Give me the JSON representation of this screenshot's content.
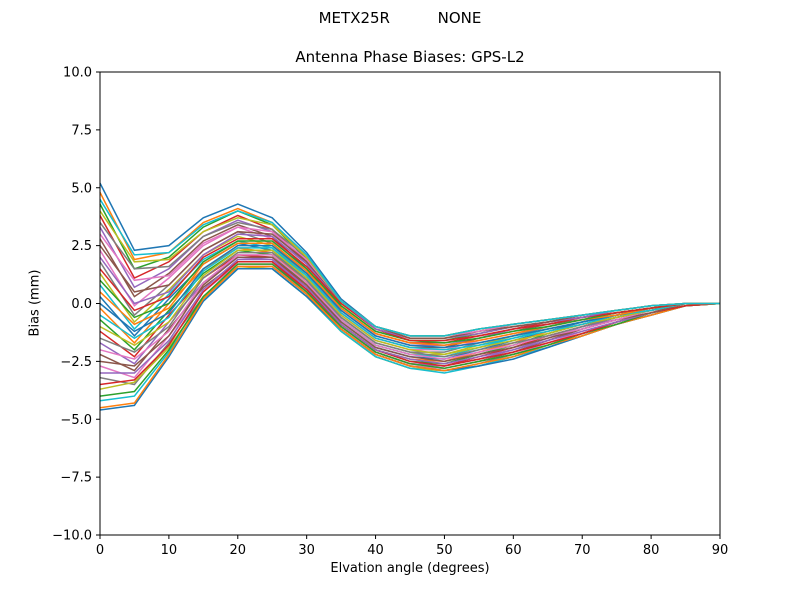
{
  "chart_data": {
    "type": "line",
    "suptitle": "METX25R          NONE",
    "title": "Antenna Phase Biases: GPS-L2",
    "xlabel": "Elvation angle (degrees)",
    "ylabel": "Bias (mm)",
    "xlim": [
      0,
      90
    ],
    "ylim": [
      -10,
      10
    ],
    "xticks": [
      0,
      10,
      20,
      30,
      40,
      50,
      60,
      70,
      80,
      90
    ],
    "yticks": [
      -10.0,
      -7.5,
      -5.0,
      -2.5,
      0.0,
      2.5,
      5.0,
      7.5,
      10.0
    ],
    "ytick_labels": [
      "−10.0",
      "−7.5",
      "−5.0",
      "−2.5",
      "0.0",
      "2.5",
      "5.0",
      "7.5",
      "10.0"
    ],
    "grid": false,
    "legend": "none",
    "palette": [
      "#1f77b4",
      "#ff7f0e",
      "#2ca02c",
      "#d62728",
      "#9467bd",
      "#8c564b",
      "#e377c2",
      "#7f7f7f",
      "#bcbd22",
      "#17becf"
    ],
    "x": [
      0,
      5,
      10,
      15,
      20,
      25,
      30,
      35,
      40,
      45,
      50,
      55,
      60,
      65,
      70,
      75,
      80,
      85,
      90
    ],
    "series": [
      {
        "values": [
          5.2,
          2.3,
          2.5,
          3.7,
          4.3,
          3.7,
          2.2,
          0.2,
          -1.0,
          -1.4,
          -1.4,
          -1.1,
          -0.9,
          -0.7,
          -0.5,
          -0.3,
          -0.1,
          0.0,
          0.0
        ]
      },
      {
        "values": [
          4.8,
          1.9,
          2.2,
          3.5,
          4.1,
          3.5,
          2.0,
          0.0,
          -1.1,
          -1.5,
          -1.5,
          -1.2,
          -0.9,
          -0.7,
          -0.5,
          -0.3,
          -0.1,
          0.0,
          0.0
        ]
      },
      {
        "values": [
          4.3,
          1.5,
          2.0,
          3.3,
          4.0,
          3.4,
          1.9,
          -0.1,
          -1.2,
          -1.6,
          -1.6,
          -1.3,
          -1.0,
          -0.8,
          -0.6,
          -0.4,
          -0.2,
          0.0,
          0.0
        ]
      },
      {
        "values": [
          3.8,
          1.1,
          1.8,
          3.1,
          3.8,
          3.2,
          1.8,
          -0.2,
          -1.3,
          -1.7,
          -1.7,
          -1.4,
          -1.1,
          -0.8,
          -0.6,
          -0.4,
          -0.2,
          0.0,
          0.0
        ]
      },
      {
        "values": [
          3.3,
          0.7,
          1.5,
          2.9,
          3.6,
          3.1,
          1.7,
          -0.3,
          -1.4,
          -1.8,
          -1.8,
          -1.5,
          -1.1,
          -0.9,
          -0.6,
          -0.4,
          -0.2,
          0.0,
          0.0
        ]
      },
      {
        "values": [
          2.8,
          0.3,
          1.3,
          2.7,
          3.4,
          2.9,
          1.5,
          -0.4,
          -1.5,
          -1.9,
          -1.9,
          -1.5,
          -1.2,
          -0.9,
          -0.7,
          -0.4,
          -0.2,
          0.0,
          0.0
        ]
      },
      {
        "values": [
          2.3,
          -0.1,
          1.1,
          2.5,
          3.3,
          2.8,
          1.4,
          -0.5,
          -1.6,
          -2.0,
          -2.0,
          -1.6,
          -1.3,
          -1.0,
          -0.7,
          -0.5,
          -0.2,
          0.0,
          0.0
        ]
      },
      {
        "values": [
          1.8,
          -0.5,
          0.8,
          2.3,
          3.1,
          2.6,
          1.3,
          -0.6,
          -1.7,
          -2.1,
          -2.1,
          -1.7,
          -1.4,
          -1.0,
          -0.7,
          -0.5,
          -0.2,
          0.0,
          0.0
        ]
      },
      {
        "values": [
          1.3,
          -0.8,
          0.6,
          2.1,
          2.9,
          2.5,
          1.2,
          -0.7,
          -1.8,
          -2.2,
          -2.2,
          -1.8,
          -1.4,
          -1.1,
          -0.8,
          -0.5,
          -0.2,
          0.0,
          0.0
        ]
      },
      {
        "values": [
          0.8,
          -1.1,
          0.4,
          1.9,
          2.7,
          2.4,
          1.1,
          -0.7,
          -1.8,
          -2.2,
          -2.3,
          -1.9,
          -1.5,
          -1.1,
          -0.8,
          -0.5,
          -0.3,
          0.0,
          0.0
        ]
      },
      {
        "values": [
          0.3,
          -1.4,
          0.2,
          1.7,
          2.6,
          2.3,
          1.0,
          -0.8,
          -1.9,
          -2.3,
          -2.4,
          -2.0,
          -1.6,
          -1.2,
          -0.8,
          -0.5,
          -0.3,
          0.0,
          0.0
        ]
      },
      {
        "values": [
          -0.2,
          -1.7,
          0.0,
          1.5,
          2.4,
          2.2,
          0.9,
          -0.9,
          -2.0,
          -2.4,
          -2.5,
          -2.1,
          -1.7,
          -1.2,
          -0.9,
          -0.6,
          -0.3,
          0.0,
          0.0
        ]
      },
      {
        "values": [
          -0.7,
          -2.0,
          -0.3,
          1.3,
          2.3,
          2.1,
          0.8,
          -0.9,
          -2.0,
          -2.5,
          -2.6,
          -2.2,
          -1.8,
          -1.3,
          -0.9,
          -0.6,
          -0.3,
          0.0,
          0.0
        ]
      },
      {
        "values": [
          -1.2,
          -2.3,
          -0.5,
          1.1,
          2.1,
          2.0,
          0.7,
          -1.0,
          -2.1,
          -2.6,
          -2.7,
          -2.3,
          -1.9,
          -1.4,
          -1.0,
          -0.6,
          -0.3,
          0.0,
          0.0
        ]
      },
      {
        "values": [
          -1.7,
          -2.6,
          -0.8,
          0.9,
          2.0,
          1.9,
          0.6,
          -1.0,
          -2.1,
          -2.6,
          -2.7,
          -2.4,
          -2.0,
          -1.5,
          -1.0,
          -0.7,
          -0.4,
          0.0,
          0.0
        ]
      },
      {
        "values": [
          -2.2,
          -2.9,
          -1.1,
          0.7,
          1.8,
          1.8,
          0.5,
          -1.1,
          -2.2,
          -2.7,
          -2.8,
          -2.5,
          -2.1,
          -1.6,
          -1.1,
          -0.7,
          -0.4,
          0.0,
          0.0
        ]
      },
      {
        "values": [
          -2.7,
          -3.2,
          -1.4,
          0.5,
          1.7,
          1.7,
          0.4,
          -1.1,
          -2.2,
          -2.7,
          -2.8,
          -2.5,
          -2.2,
          -1.7,
          -1.2,
          -0.8,
          -0.4,
          0.0,
          0.0
        ]
      },
      {
        "values": [
          -3.2,
          -3.5,
          -1.7,
          0.3,
          1.6,
          1.6,
          0.4,
          -1.2,
          -2.3,
          -2.8,
          -2.9,
          -2.6,
          -2.2,
          -1.8,
          -1.3,
          -0.8,
          -0.4,
          -0.1,
          0.0
        ]
      },
      {
        "values": [
          -3.7,
          -3.4,
          -1.9,
          0.2,
          1.6,
          1.5,
          0.3,
          -1.2,
          -2.3,
          -2.8,
          -2.9,
          -2.7,
          -2.3,
          -1.8,
          -1.3,
          -0.8,
          -0.4,
          -0.1,
          0.0
        ]
      },
      {
        "values": [
          -4.2,
          -4.0,
          -2.1,
          0.1,
          1.5,
          1.5,
          0.3,
          -1.2,
          -2.3,
          -2.8,
          -3.0,
          -2.7,
          -2.3,
          -1.9,
          -1.4,
          -0.9,
          -0.5,
          -0.1,
          0.0
        ]
      },
      {
        "values": [
          -4.6,
          -4.4,
          -2.3,
          0.1,
          1.5,
          1.5,
          0.3,
          -1.1,
          -2.2,
          -2.7,
          -2.9,
          -2.7,
          -2.4,
          -1.9,
          -1.4,
          -0.9,
          -0.5,
          -0.1,
          0.0
        ]
      },
      {
        "values": [
          -4.5,
          -4.3,
          -2.2,
          0.2,
          1.6,
          1.6,
          0.4,
          -1.1,
          -2.2,
          -2.7,
          -2.9,
          -2.6,
          -2.3,
          -1.8,
          -1.4,
          -0.9,
          -0.5,
          -0.1,
          0.0
        ]
      },
      {
        "values": [
          -4.0,
          -3.8,
          -2.0,
          0.3,
          1.7,
          1.7,
          0.5,
          -1.0,
          -2.1,
          -2.6,
          -2.8,
          -2.5,
          -2.2,
          -1.8,
          -1.3,
          -0.9,
          -0.4,
          -0.1,
          0.0
        ]
      },
      {
        "values": [
          -3.5,
          -3.3,
          -1.8,
          0.5,
          1.8,
          1.8,
          0.6,
          -0.9,
          -2.0,
          -2.5,
          -2.7,
          -2.4,
          -2.1,
          -1.7,
          -1.3,
          -0.8,
          -0.4,
          -0.1,
          0.0
        ]
      },
      {
        "values": [
          -3.0,
          -3.0,
          -1.6,
          0.6,
          1.9,
          1.9,
          0.7,
          -0.9,
          -2.0,
          -2.4,
          -2.6,
          -2.3,
          -2.0,
          -1.6,
          -1.2,
          -0.8,
          -0.4,
          0.0,
          0.0
        ]
      },
      {
        "values": [
          -2.5,
          -2.7,
          -1.4,
          0.8,
          2.0,
          2.0,
          0.8,
          -0.8,
          -1.9,
          -2.3,
          -2.5,
          -2.2,
          -1.9,
          -1.5,
          -1.1,
          -0.7,
          -0.4,
          0.0,
          0.0
        ]
      },
      {
        "values": [
          -2.0,
          -2.4,
          -1.2,
          0.9,
          2.1,
          2.1,
          0.9,
          -0.7,
          -1.8,
          -2.2,
          -2.4,
          -2.1,
          -1.8,
          -1.4,
          -1.1,
          -0.7,
          -0.3,
          0.0,
          0.0
        ]
      },
      {
        "values": [
          -1.5,
          -2.1,
          -1.0,
          1.1,
          2.2,
          2.2,
          1.0,
          -0.6,
          -1.7,
          -2.1,
          -2.3,
          -2.0,
          -1.7,
          -1.4,
          -1.0,
          -0.6,
          -0.3,
          0.0,
          0.0
        ]
      },
      {
        "values": [
          -1.0,
          -1.8,
          -0.8,
          1.2,
          2.3,
          2.3,
          1.1,
          -0.5,
          -1.6,
          -2.0,
          -2.2,
          -1.9,
          -1.6,
          -1.3,
          -0.9,
          -0.6,
          -0.3,
          0.0,
          0.0
        ]
      },
      {
        "values": [
          -0.5,
          -1.5,
          -0.6,
          1.4,
          2.4,
          2.4,
          1.2,
          -0.4,
          -1.5,
          -1.9,
          -2.0,
          -1.8,
          -1.5,
          -1.2,
          -0.9,
          -0.5,
          -0.3,
          0.0,
          0.0
        ]
      },
      {
        "values": [
          0.0,
          -1.2,
          -0.4,
          1.5,
          2.5,
          2.5,
          1.3,
          -0.3,
          -1.4,
          -1.8,
          -1.9,
          -1.7,
          -1.4,
          -1.1,
          -0.8,
          -0.5,
          -0.2,
          0.0,
          0.0
        ]
      },
      {
        "values": [
          0.5,
          -0.9,
          -0.2,
          1.7,
          2.6,
          2.6,
          1.4,
          -0.2,
          -1.3,
          -1.7,
          -1.8,
          -1.6,
          -1.3,
          -1.0,
          -0.7,
          -0.5,
          -0.2,
          0.0,
          0.0
        ]
      },
      {
        "values": [
          1.0,
          -0.6,
          0.0,
          1.8,
          2.7,
          2.7,
          1.5,
          -0.1,
          -1.2,
          -1.6,
          -1.7,
          -1.5,
          -1.2,
          -1.0,
          -0.7,
          -0.4,
          -0.2,
          0.0,
          0.0
        ]
      },
      {
        "values": [
          1.5,
          -0.3,
          0.3,
          2.0,
          2.8,
          2.8,
          1.6,
          0.0,
          -1.1,
          -1.6,
          -1.6,
          -1.4,
          -1.1,
          -0.9,
          -0.6,
          -0.4,
          -0.2,
          0.0,
          0.0
        ]
      },
      {
        "values": [
          2.0,
          0.0,
          0.5,
          2.1,
          3.0,
          2.9,
          1.7,
          0.1,
          -1.1,
          -1.5,
          -1.5,
          -1.3,
          -1.0,
          -0.8,
          -0.6,
          -0.3,
          -0.1,
          0.0,
          0.0
        ]
      },
      {
        "values": [
          2.5,
          0.5,
          0.8,
          2.3,
          3.1,
          3.0,
          1.8,
          0.1,
          -1.0,
          -1.5,
          -1.5,
          -1.2,
          -1.0,
          -0.8,
          -0.5,
          -0.3,
          -0.1,
          0.0,
          0.0
        ]
      },
      {
        "values": [
          3.0,
          1.0,
          1.2,
          2.6,
          3.3,
          3.1,
          1.9,
          0.1,
          -1.0,
          -1.4,
          -1.4,
          -1.2,
          -0.9,
          -0.7,
          -0.5,
          -0.3,
          -0.1,
          0.0,
          0.0
        ]
      },
      {
        "values": [
          3.5,
          1.5,
          1.6,
          2.9,
          3.5,
          3.2,
          2.0,
          0.1,
          -1.0,
          -1.4,
          -1.4,
          -1.1,
          -0.9,
          -0.7,
          -0.5,
          -0.3,
          -0.1,
          0.0,
          0.0
        ]
      },
      {
        "values": [
          4.0,
          1.8,
          1.9,
          3.1,
          3.7,
          3.4,
          2.0,
          0.1,
          -1.0,
          -1.4,
          -1.4,
          -1.1,
          -0.9,
          -0.7,
          -0.5,
          -0.3,
          -0.1,
          0.0,
          0.0
        ]
      },
      {
        "values": [
          4.5,
          2.1,
          2.2,
          3.4,
          4.0,
          3.5,
          2.1,
          0.1,
          -1.0,
          -1.4,
          -1.4,
          -1.1,
          -0.9,
          -0.7,
          -0.5,
          -0.3,
          -0.1,
          0.0,
          0.0
        ]
      }
    ]
  }
}
